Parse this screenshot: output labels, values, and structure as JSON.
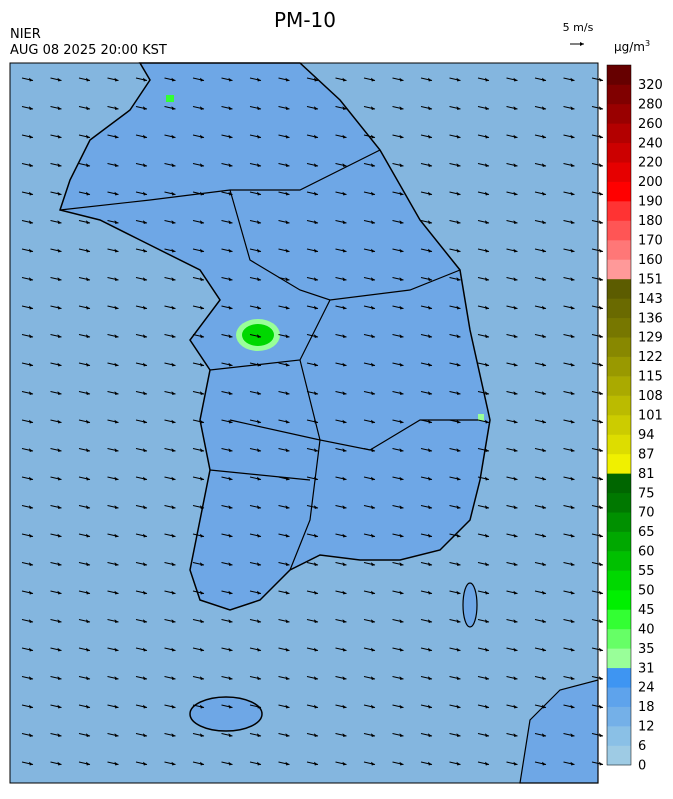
{
  "header": {
    "title": "PM-10",
    "agency": "NIER",
    "datetime": "AUG 08 2025 20:00 KST"
  },
  "wind_scale": {
    "label": "5 m/s"
  },
  "legend": {
    "unit": "μg/m",
    "unit_exponent": "3",
    "ticks": [
      0,
      6,
      12,
      18,
      24,
      31,
      35,
      40,
      45,
      50,
      55,
      60,
      65,
      70,
      75,
      81,
      87,
      94,
      101,
      108,
      115,
      122,
      129,
      136,
      143,
      151,
      160,
      170,
      180,
      190,
      200,
      220,
      240,
      260,
      280,
      320
    ],
    "colors": [
      "#9ecbe4",
      "#8ac0e6",
      "#74b0e8",
      "#5ea3ec",
      "#3e95f2",
      "#99ff99",
      "#66ff66",
      "#33ff33",
      "#00f000",
      "#00d800",
      "#00c000",
      "#00a800",
      "#009000",
      "#007800",
      "#006600",
      "#f0f000",
      "#dddd00",
      "#cccc00",
      "#bbbb00",
      "#aaaa00",
      "#999900",
      "#888800",
      "#777700",
      "#6a6a00",
      "#5c5c00",
      "#ff9999",
      "#ff7777",
      "#ff5555",
      "#ff3333",
      "#ff0000",
      "#e60000",
      "#cc0000",
      "#b30000",
      "#990000",
      "#800000",
      "#660000"
    ]
  }
}
